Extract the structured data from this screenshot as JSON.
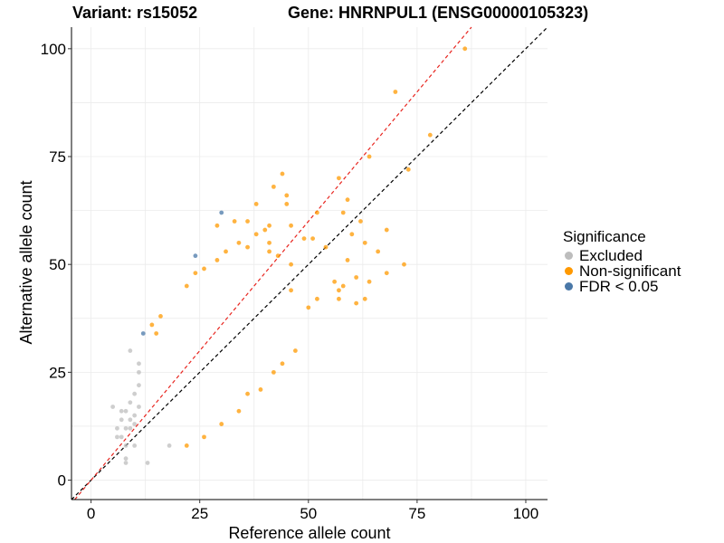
{
  "chart_data": {
    "type": "scatter",
    "title_left": "Variant: rs15052",
    "title_right": "Gene: HNRNPUL1 (ENSG00000105323)",
    "xlabel": "Reference allele count",
    "ylabel": "Alternative allele count",
    "xlim": [
      -4.5,
      105
    ],
    "ylim": [
      -4.5,
      105
    ],
    "xticks": [
      0,
      25,
      50,
      75,
      100
    ],
    "yticks": [
      0,
      25,
      50,
      75,
      100
    ],
    "grid": true,
    "reference_lines": [
      {
        "name": "identity line",
        "slope": 1.0,
        "intercept": 0,
        "color": "#000000",
        "dash": "dashed"
      },
      {
        "name": "fitted line",
        "slope": 1.2,
        "intercept": 0,
        "color": "#e8251f",
        "dash": "dashed"
      }
    ],
    "legend": {
      "title": "Significance",
      "position": "right",
      "items": [
        {
          "label": "Excluded",
          "color": "#bdbdbd"
        },
        {
          "label": "Non-significant",
          "color": "#ff9900"
        },
        {
          "label": "FDR < 0.05",
          "color": "#4a78a8"
        }
      ]
    },
    "series": [
      {
        "name": "Excluded",
        "color": "#bdbdbd",
        "points": [
          [
            5,
            17
          ],
          [
            6,
            12
          ],
          [
            6,
            10
          ],
          [
            7,
            14
          ],
          [
            7,
            10
          ],
          [
            8,
            16
          ],
          [
            8,
            12
          ],
          [
            8,
            8
          ],
          [
            8,
            5
          ],
          [
            8,
            4
          ],
          [
            9,
            30
          ],
          [
            9,
            18
          ],
          [
            9,
            14
          ],
          [
            9,
            12
          ],
          [
            10,
            20
          ],
          [
            10,
            15
          ],
          [
            10,
            8
          ],
          [
            11,
            27
          ],
          [
            11,
            25
          ],
          [
            11,
            22
          ],
          [
            11,
            17
          ],
          [
            13,
            4
          ],
          [
            18,
            8
          ],
          [
            7,
            16
          ],
          [
            10,
            13
          ]
        ]
      },
      {
        "name": "Non-significant",
        "color": "#ff9900",
        "points": [
          [
            86,
            100
          ],
          [
            70,
            90
          ],
          [
            78,
            80
          ],
          [
            73,
            72
          ],
          [
            64,
            75
          ],
          [
            44,
            71
          ],
          [
            57,
            70
          ],
          [
            42,
            68
          ],
          [
            45,
            66
          ],
          [
            59,
            65
          ],
          [
            38,
            64
          ],
          [
            45,
            64
          ],
          [
            52,
            62
          ],
          [
            58,
            62
          ],
          [
            33,
            60
          ],
          [
            36,
            60
          ],
          [
            62,
            60
          ],
          [
            29,
            59
          ],
          [
            41,
            59
          ],
          [
            46,
            59
          ],
          [
            60,
            57
          ],
          [
            68,
            58
          ],
          [
            49,
            56
          ],
          [
            51,
            56
          ],
          [
            63,
            55
          ],
          [
            41,
            55
          ],
          [
            54,
            54
          ],
          [
            66,
            53
          ],
          [
            59,
            51
          ],
          [
            61,
            47
          ],
          [
            56,
            46
          ],
          [
            64,
            46
          ],
          [
            68,
            48
          ],
          [
            57,
            44
          ],
          [
            52,
            42
          ],
          [
            58,
            45
          ],
          [
            50,
            40
          ],
          [
            46,
            44
          ],
          [
            61,
            41
          ],
          [
            63,
            42
          ],
          [
            57,
            42
          ],
          [
            72,
            50
          ],
          [
            14,
            36
          ],
          [
            15,
            34
          ],
          [
            16,
            38
          ],
          [
            22,
            45
          ],
          [
            24,
            48
          ],
          [
            26,
            49
          ],
          [
            29,
            51
          ],
          [
            31,
            53
          ],
          [
            34,
            55
          ],
          [
            38,
            57
          ],
          [
            40,
            58
          ],
          [
            43,
            52
          ],
          [
            46,
            50
          ],
          [
            22,
            8
          ],
          [
            26,
            10
          ],
          [
            30,
            13
          ],
          [
            34,
            16
          ],
          [
            36,
            20
          ],
          [
            39,
            21
          ],
          [
            42,
            25
          ],
          [
            44,
            27
          ],
          [
            47,
            30
          ],
          [
            36,
            54
          ],
          [
            41,
            53
          ]
        ]
      },
      {
        "name": "FDR < 0.05",
        "color": "#4a78a8",
        "points": [
          [
            30,
            62
          ],
          [
            24,
            52
          ],
          [
            12,
            34
          ]
        ]
      }
    ]
  }
}
